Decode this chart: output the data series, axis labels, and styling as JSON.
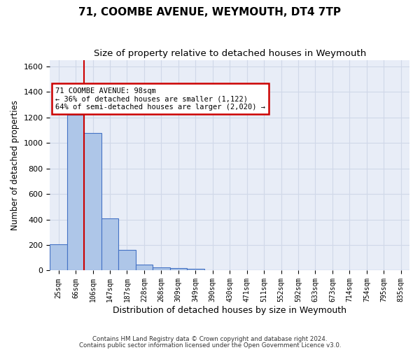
{
  "title": "71, COOMBE AVENUE, WEYMOUTH, DT4 7TP",
  "subtitle": "Size of property relative to detached houses in Weymouth",
  "xlabel": "Distribution of detached houses by size in Weymouth",
  "ylabel": "Number of detached properties",
  "bar_values": [
    203,
    1222,
    1075,
    410,
    163,
    45,
    27,
    18,
    14,
    0,
    0,
    0,
    0,
    0,
    0,
    0,
    0,
    0,
    0,
    0,
    0
  ],
  "bin_labels": [
    "25sqm",
    "66sqm",
    "106sqm",
    "147sqm",
    "187sqm",
    "228sqm",
    "268sqm",
    "309sqm",
    "349sqm",
    "390sqm",
    "430sqm",
    "471sqm",
    "511sqm",
    "552sqm",
    "592sqm",
    "633sqm",
    "673sqm",
    "714sqm",
    "754sqm",
    "795sqm",
    "835sqm"
  ],
  "bar_color": "#aec6e8",
  "bar_edge_color": "#4472c4",
  "property_line_x": 1.5,
  "annotation_text": "71 COOMBE AVENUE: 98sqm\n← 36% of detached houses are smaller (1,122)\n64% of semi-detached houses are larger (2,020) →",
  "annotation_box_color": "#ffffff",
  "annotation_box_edge_color": "#cc0000",
  "property_line_color": "#cc0000",
  "ylim": [
    0,
    1650
  ],
  "yticks": [
    0,
    200,
    400,
    600,
    800,
    1000,
    1200,
    1400,
    1600
  ],
  "grid_color": "#d0d8e8",
  "bg_color": "#e8edf7",
  "footer_line1": "Contains HM Land Registry data © Crown copyright and database right 2024.",
  "footer_line2": "Contains public sector information licensed under the Open Government Licence v3.0.",
  "title_fontsize": 11,
  "subtitle_fontsize": 9.5,
  "xlabel_fontsize": 9,
  "ylabel_fontsize": 8.5
}
